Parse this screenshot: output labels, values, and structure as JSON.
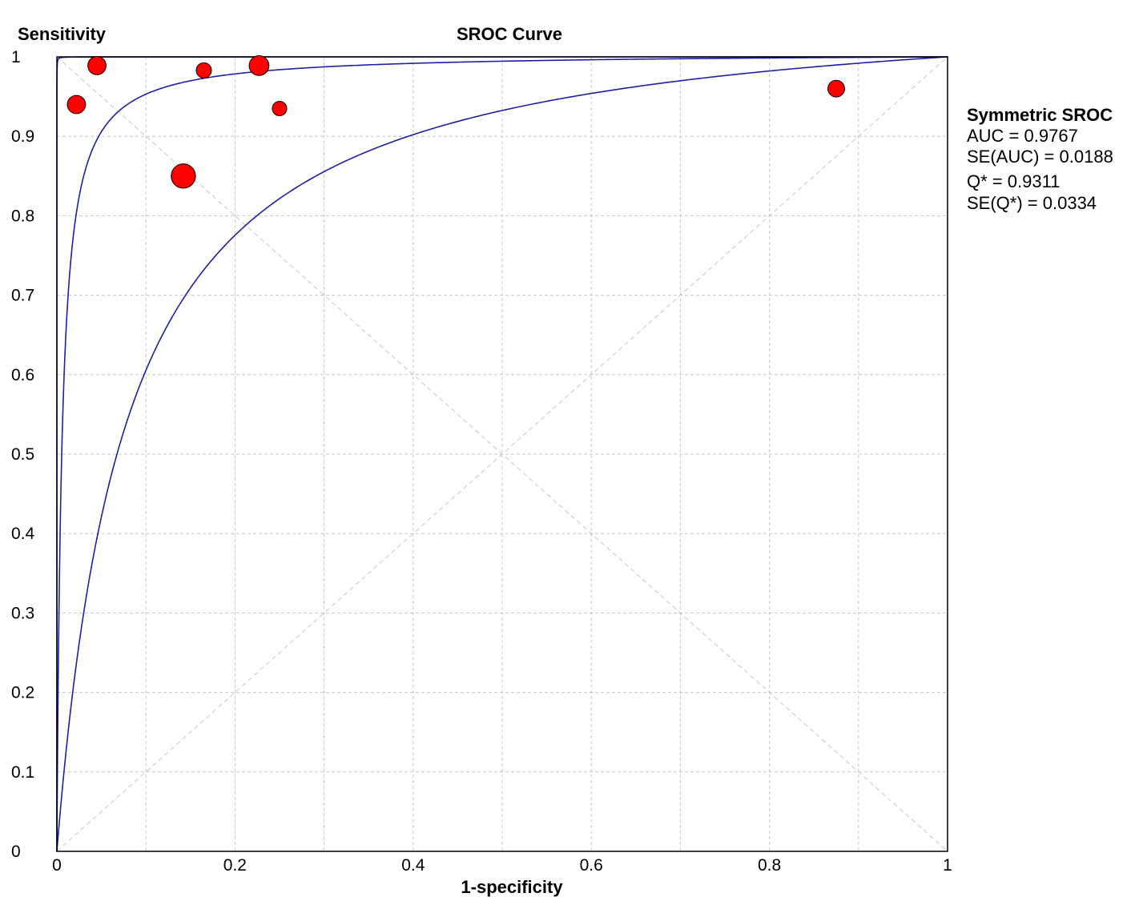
{
  "chart_data": {
    "type": "scatter",
    "title": "SROC Curve",
    "xlabel": "1-specificity",
    "ylabel": "Sensitivity",
    "xlim": [
      0,
      1
    ],
    "ylim": [
      0,
      1
    ],
    "xticks": [
      "0",
      "0.2",
      "0.4",
      "0.6",
      "0.8",
      "1"
    ],
    "yticks": [
      "0",
      "0.1",
      "0.2",
      "0.3",
      "0.4",
      "0.5",
      "0.6",
      "0.7",
      "0.8",
      "0.9",
      "1"
    ],
    "grid": true,
    "points": [
      {
        "x": 0.045,
        "y": 0.989,
        "weight": 1.2
      },
      {
        "x": 0.022,
        "y": 0.94,
        "weight": 1.2
      },
      {
        "x": 0.165,
        "y": 0.983,
        "weight": 1.0
      },
      {
        "x": 0.227,
        "y": 0.989,
        "weight": 1.3
      },
      {
        "x": 0.25,
        "y": 0.935,
        "weight": 0.95
      },
      {
        "x": 0.142,
        "y": 0.85,
        "weight": 1.6
      },
      {
        "x": 0.875,
        "y": 0.96,
        "weight": 1.1
      }
    ],
    "curves": [
      {
        "role": "sroc",
        "q": 0.9311
      },
      {
        "role": "ci-upper",
        "q": 0.9979
      },
      {
        "role": "ci-lower",
        "q": 0.788
      }
    ],
    "colors": {
      "points": "#ff0000",
      "curves": "#1f1fa8",
      "grid": "#c8c8c8",
      "diagonal": "#c8c8c8"
    }
  },
  "legend": {
    "title": "Symmetric SROC",
    "lines": [
      "AUC = 0.9767",
      "SE(AUC) = 0.0188",
      "Q* = 0.9311",
      "SE(Q*) = 0.0334"
    ]
  }
}
